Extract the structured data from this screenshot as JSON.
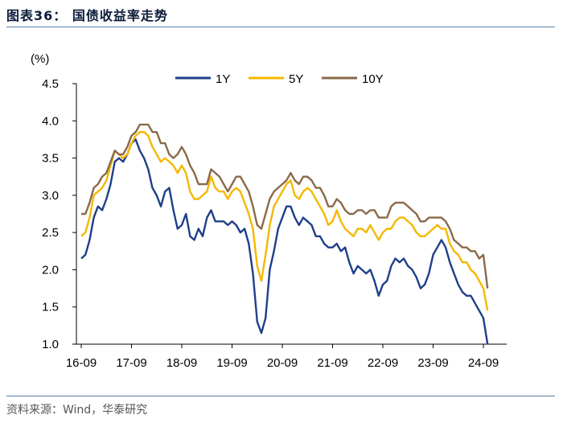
{
  "figure": {
    "title": "图表36： 国债收益率走势",
    "source": "资料来源：Wind，华泰研究"
  },
  "chart_data": {
    "type": "line",
    "title": "",
    "ylabel": "(%)",
    "xlabel": "",
    "ylim": [
      1.0,
      4.5
    ],
    "yticks": [
      "1.0",
      "1.5",
      "2.0",
      "2.5",
      "3.0",
      "3.5",
      "4.0",
      "4.5"
    ],
    "xticks": [
      "16-09",
      "17-09",
      "18-09",
      "19-09",
      "20-09",
      "21-09",
      "22-09",
      "23-09",
      "24-09"
    ],
    "legend_position": "top",
    "x": [
      "2016-09",
      "2016-10",
      "2016-11",
      "2016-12",
      "2017-01",
      "2017-02",
      "2017-03",
      "2017-04",
      "2017-05",
      "2017-06",
      "2017-07",
      "2017-08",
      "2017-09",
      "2017-10",
      "2017-11",
      "2017-12",
      "2018-01",
      "2018-02",
      "2018-03",
      "2018-04",
      "2018-05",
      "2018-06",
      "2018-07",
      "2018-08",
      "2018-09",
      "2018-10",
      "2018-11",
      "2018-12",
      "2019-01",
      "2019-02",
      "2019-03",
      "2019-04",
      "2019-05",
      "2019-06",
      "2019-07",
      "2019-08",
      "2019-09",
      "2019-10",
      "2019-11",
      "2019-12",
      "2020-01",
      "2020-02",
      "2020-03",
      "2020-04",
      "2020-05",
      "2020-06",
      "2020-07",
      "2020-08",
      "2020-09",
      "2020-10",
      "2020-11",
      "2020-12",
      "2021-01",
      "2021-02",
      "2021-03",
      "2021-04",
      "2021-05",
      "2021-06",
      "2021-07",
      "2021-08",
      "2021-09",
      "2021-10",
      "2021-11",
      "2021-12",
      "2022-01",
      "2022-02",
      "2022-03",
      "2022-04",
      "2022-05",
      "2022-06",
      "2022-07",
      "2022-08",
      "2022-09",
      "2022-10",
      "2022-11",
      "2022-12",
      "2023-01",
      "2023-02",
      "2023-03",
      "2023-04",
      "2023-05",
      "2023-06",
      "2023-07",
      "2023-08",
      "2023-09",
      "2023-10",
      "2023-11",
      "2023-12",
      "2024-01",
      "2024-02",
      "2024-03",
      "2024-04",
      "2024-05",
      "2024-06",
      "2024-07",
      "2024-08",
      "2024-09",
      "2024-10"
    ],
    "series": [
      {
        "name": "1Y",
        "color": "#1f3f8a",
        "values": [
          2.15,
          2.2,
          2.4,
          2.7,
          2.85,
          2.8,
          2.95,
          3.15,
          3.45,
          3.5,
          3.45,
          3.55,
          3.7,
          3.75,
          3.6,
          3.5,
          3.35,
          3.1,
          3.0,
          2.85,
          3.05,
          3.1,
          2.8,
          2.55,
          2.6,
          2.75,
          2.45,
          2.4,
          2.55,
          2.45,
          2.7,
          2.8,
          2.65,
          2.65,
          2.65,
          2.6,
          2.65,
          2.6,
          2.5,
          2.55,
          2.35,
          1.95,
          1.3,
          1.15,
          1.35,
          2.0,
          2.25,
          2.55,
          2.7,
          2.85,
          2.85,
          2.7,
          2.6,
          2.7,
          2.65,
          2.6,
          2.45,
          2.45,
          2.35,
          2.3,
          2.3,
          2.35,
          2.25,
          2.3,
          2.1,
          1.95,
          2.05,
          2.0,
          1.95,
          2.0,
          1.85,
          1.65,
          1.8,
          1.85,
          2.05,
          2.15,
          2.1,
          2.15,
          2.05,
          2.0,
          1.9,
          1.75,
          1.8,
          1.95,
          2.2,
          2.3,
          2.4,
          2.3,
          2.1,
          1.95,
          1.8,
          1.7,
          1.65,
          1.65,
          1.55,
          1.45,
          1.35,
          1.0
        ]
      },
      {
        "name": "5Y",
        "color": "#f5b800",
        "values": [
          2.45,
          2.5,
          2.7,
          3.0,
          3.05,
          3.1,
          3.2,
          3.4,
          3.6,
          3.55,
          3.5,
          3.55,
          3.7,
          3.8,
          3.85,
          3.85,
          3.8,
          3.65,
          3.55,
          3.45,
          3.5,
          3.45,
          3.4,
          3.3,
          3.4,
          3.3,
          3.05,
          2.95,
          2.95,
          3.0,
          3.05,
          3.25,
          3.1,
          3.05,
          3.05,
          2.95,
          3.05,
          3.1,
          3.05,
          2.9,
          2.75,
          2.55,
          2.05,
          1.85,
          2.2,
          2.6,
          2.85,
          2.95,
          3.05,
          3.15,
          3.2,
          3.0,
          2.95,
          3.05,
          3.1,
          3.05,
          2.95,
          2.85,
          2.75,
          2.6,
          2.65,
          2.8,
          2.65,
          2.55,
          2.5,
          2.45,
          2.55,
          2.55,
          2.5,
          2.6,
          2.5,
          2.4,
          2.5,
          2.55,
          2.55,
          2.65,
          2.7,
          2.7,
          2.65,
          2.6,
          2.5,
          2.45,
          2.45,
          2.5,
          2.55,
          2.6,
          2.55,
          2.55,
          2.35,
          2.25,
          2.2,
          2.1,
          2.1,
          2.0,
          1.95,
          1.85,
          1.75,
          1.45
        ]
      },
      {
        "name": "10Y",
        "color": "#8a6a4a",
        "values": [
          2.75,
          2.75,
          2.9,
          3.1,
          3.15,
          3.25,
          3.3,
          3.45,
          3.6,
          3.55,
          3.55,
          3.65,
          3.8,
          3.85,
          3.95,
          3.95,
          3.95,
          3.85,
          3.85,
          3.7,
          3.7,
          3.55,
          3.5,
          3.55,
          3.65,
          3.55,
          3.4,
          3.3,
          3.15,
          3.15,
          3.15,
          3.35,
          3.3,
          3.25,
          3.15,
          3.05,
          3.15,
          3.25,
          3.25,
          3.15,
          3.05,
          2.85,
          2.6,
          2.55,
          2.75,
          2.95,
          3.05,
          3.1,
          3.15,
          3.2,
          3.3,
          3.2,
          3.15,
          3.25,
          3.25,
          3.2,
          3.1,
          3.1,
          3.0,
          2.85,
          2.85,
          2.95,
          2.9,
          2.8,
          2.75,
          2.75,
          2.8,
          2.8,
          2.75,
          2.8,
          2.8,
          2.7,
          2.7,
          2.7,
          2.85,
          2.9,
          2.9,
          2.9,
          2.85,
          2.8,
          2.75,
          2.65,
          2.65,
          2.7,
          2.7,
          2.7,
          2.7,
          2.65,
          2.55,
          2.4,
          2.35,
          2.3,
          2.3,
          2.25,
          2.25,
          2.15,
          2.2,
          1.75
        ]
      }
    ]
  }
}
